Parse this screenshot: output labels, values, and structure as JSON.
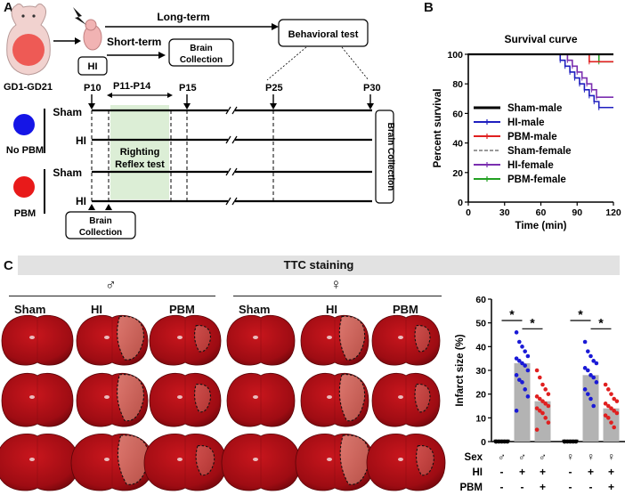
{
  "panels": {
    "a": "A",
    "b": "B",
    "c": "C"
  },
  "panel_a": {
    "timepoint_range": "GD1-GD21",
    "hi_box": "HI",
    "long_term": "Long-term",
    "short_term": "Short-term",
    "brain_collection_box": "Brain\nCollection",
    "behavioral_test": "Behavioral  test",
    "ticks": [
      "P10",
      "P11-P14",
      "P15",
      "P25",
      "P30"
    ],
    "rows": [
      "Sham",
      "HI",
      "Sham",
      "HI"
    ],
    "groups": [
      "No PBM",
      "PBM"
    ],
    "group_colors": [
      "#1515e6",
      "#e81a1a"
    ],
    "righting_reflex": "Righting\nReflex test",
    "brain_collection_bottom": "Brain\nCollection",
    "brain_collection_right": "Brain Collection"
  },
  "chart_data": [
    {
      "type": "line",
      "title": "Survival curve",
      "xlabel": "Time (min)",
      "ylabel": "Percent survival",
      "xlim": [
        0,
        120
      ],
      "ylim": [
        0,
        100
      ],
      "xticks": [
        0,
        30,
        60,
        90,
        120
      ],
      "yticks": [
        0,
        20,
        40,
        60,
        80,
        100
      ],
      "legend_position": "left",
      "series": [
        {
          "name": "Sham-male",
          "color": "#000000",
          "x": [
            0,
            120
          ],
          "y": [
            100,
            100
          ]
        },
        {
          "name": "HI-male",
          "color": "#1f1fbf",
          "x": [
            0,
            72,
            76,
            80,
            84,
            88,
            92,
            96,
            100,
            104,
            108,
            120
          ],
          "y": [
            100,
            100,
            96,
            92,
            88,
            84,
            80,
            76,
            72,
            68,
            64,
            64
          ]
        },
        {
          "name": "PBM-male",
          "color": "#e02020",
          "x": [
            0,
            100,
            100,
            120
          ],
          "y": [
            100,
            100,
            95,
            95
          ]
        },
        {
          "name": "Sham-female",
          "color": "#999999",
          "x": [
            0,
            120
          ],
          "y": [
            100,
            100
          ]
        },
        {
          "name": "HI-female",
          "color": "#7b2fb0",
          "x": [
            0,
            78,
            82,
            86,
            90,
            94,
            98,
            102,
            106,
            120
          ],
          "y": [
            100,
            100,
            96,
            92,
            88,
            84,
            80,
            76,
            71,
            71
          ]
        },
        {
          "name": "PBM-female",
          "color": "#22a022",
          "x": [
            0,
            108,
            108,
            120
          ],
          "y": [
            100,
            100,
            95,
            95
          ]
        }
      ]
    },
    {
      "type": "bar",
      "ylabel": "Infarct size (%)",
      "ylim": [
        0,
        60
      ],
      "yticks": [
        0,
        10,
        20,
        30,
        40,
        50,
        60
      ],
      "categories": [
        "Sham-male",
        "HI-male",
        "PBM-male",
        "Sham-female",
        "HI-female",
        "PBM-female"
      ],
      "values": [
        0,
        33,
        17,
        0,
        28,
        14
      ],
      "dot_colors": [
        "#000000",
        "#1a1ad6",
        "#e02020",
        "#000000",
        "#1a1ad6",
        "#e02020"
      ],
      "points": [
        [
          0,
          0,
          0,
          0,
          0,
          0
        ],
        [
          46,
          42,
          40,
          38,
          36,
          35,
          34,
          33,
          32,
          30,
          28,
          26,
          25,
          22,
          19,
          13
        ],
        [
          30,
          27,
          24,
          22,
          20,
          19,
          18,
          17,
          16,
          15,
          14,
          13,
          12,
          10,
          8,
          5
        ],
        [
          0,
          0,
          0,
          0,
          0,
          0
        ],
        [
          42,
          38,
          36,
          34,
          33,
          31,
          30,
          28,
          27,
          25,
          22,
          20,
          18,
          15
        ],
        [
          24,
          22,
          20,
          18,
          17,
          16,
          15,
          14,
          13,
          12,
          11,
          10,
          8,
          6
        ]
      ],
      "significance": [
        {
          "from": 0,
          "to": 1,
          "label": "*"
        },
        {
          "from": 1,
          "to": 2,
          "label": "*"
        },
        {
          "from": 3,
          "to": 4,
          "label": "*"
        },
        {
          "from": 4,
          "to": 5,
          "label": "*"
        }
      ],
      "table_rows": [
        {
          "label": "Sex",
          "values": [
            "♂",
            "♂",
            "♂",
            "♀",
            "♀",
            "♀"
          ]
        },
        {
          "label": "HI",
          "values": [
            "-",
            "+",
            "+",
            "-",
            "+",
            "+"
          ]
        },
        {
          "label": "PBM",
          "values": [
            "-",
            "-",
            "+",
            "-",
            "-",
            "+"
          ]
        }
      ]
    }
  ],
  "panel_c": {
    "banner": "TTC staining",
    "male_symbol": "♂",
    "female_symbol": "♀",
    "column_headers": [
      "Sham",
      "HI",
      "PBM",
      "Sham",
      "HI",
      "PBM"
    ]
  }
}
